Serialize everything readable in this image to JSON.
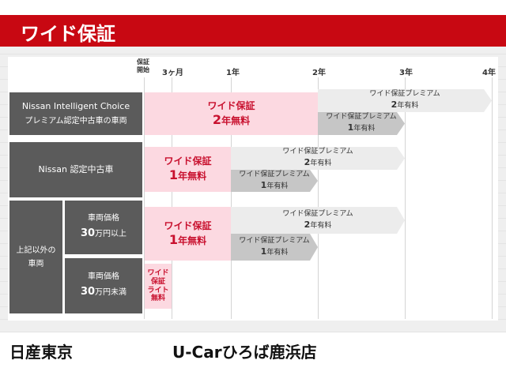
{
  "title": "ワイド保証",
  "timeline": {
    "start": "保証\n開始",
    "ticks": [
      "3ヶ月",
      "1年",
      "2年",
      "3年",
      "4年"
    ]
  },
  "rows": [
    {
      "label1": "Nissan Intelligent Choice",
      "label2": "プレミアム認定中古車の車両",
      "free": {
        "l1": "ワイド保証",
        "num": "2",
        "unit": "年無料"
      },
      "premium2": {
        "l1": "ワイド保証プレミアム",
        "num": "2",
        "unit": "年有料"
      },
      "premium1": {
        "l1": "ワイド保証プレミアム",
        "num": "1",
        "unit": "年有料"
      }
    },
    {
      "label1": "Nissan 認定中古車",
      "free": {
        "l1": "ワイド保証",
        "num": "1",
        "unit": "年無料"
      },
      "premium2": {
        "l1": "ワイド保証プレミアム",
        "num": "2",
        "unit": "年有料"
      },
      "premium1": {
        "l1": "ワイド保証プレミアム",
        "num": "1",
        "unit": "年有料"
      }
    },
    {
      "group": "上記以外の\n車両",
      "sub1": "車両価格",
      "sub2num": "30",
      "sub2": "万円以上",
      "free": {
        "l1": "ワイド保証",
        "num": "1",
        "unit": "年無料"
      },
      "premium2": {
        "l1": "ワイド保証プレミアム",
        "num": "2",
        "unit": "年有料"
      },
      "premium1": {
        "l1": "ワイド保証プレミアム",
        "num": "1",
        "unit": "年有料"
      }
    },
    {
      "sub1": "車両価格",
      "sub2num": "30",
      "sub2": "万円未満",
      "lite": "ワイド\n保証\nライト\n無料"
    }
  ],
  "footer": {
    "left": "日産東京",
    "right": "U-Carひろば鹿浜店"
  },
  "colors": {
    "red": "#c80812",
    "pink": "#fcd9e1",
    "label_bg": "#5b5b5b"
  }
}
